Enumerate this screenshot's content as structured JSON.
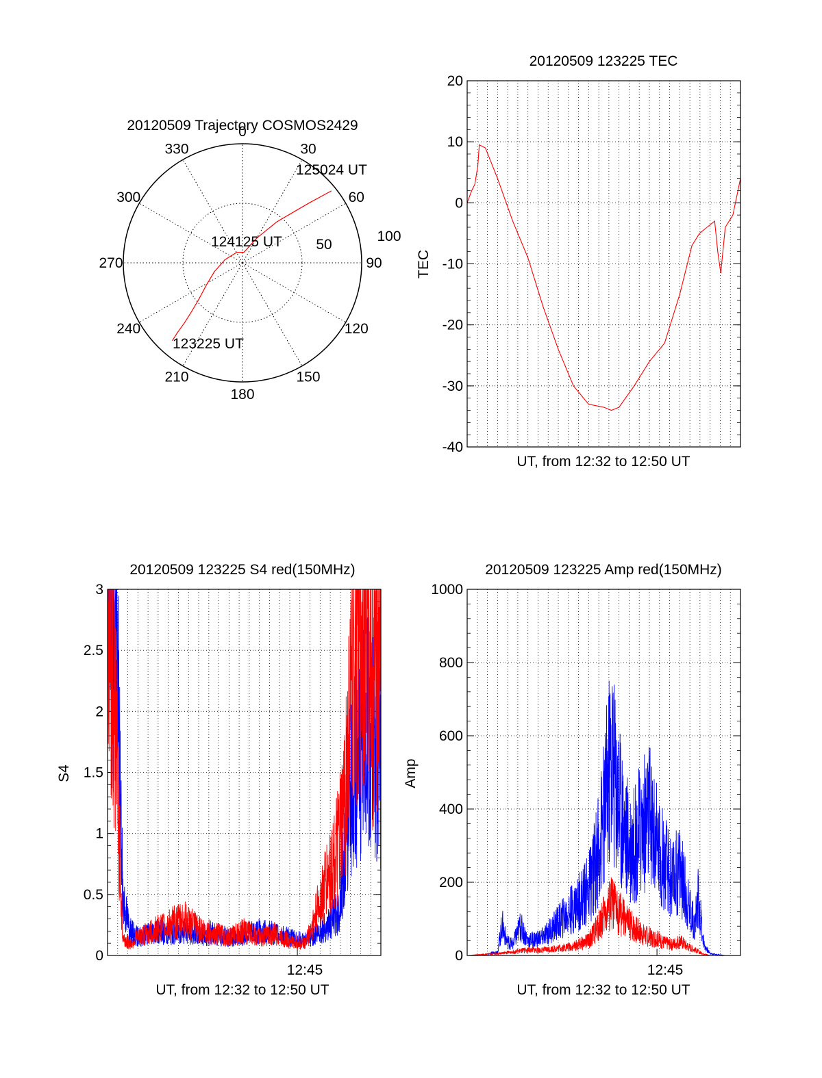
{
  "colors": {
    "red": "#ff0000",
    "blue": "#0000ff",
    "axis": "#000000",
    "grid": "#000000"
  },
  "chart_data": [
    {
      "id": "polar",
      "type": "polar",
      "title": "20120509 Trajectory COSMOS2429",
      "azimuth_labels": [
        "0",
        "30",
        "60",
        "90",
        "120",
        "150",
        "180",
        "210",
        "240",
        "270",
        "300",
        "330"
      ],
      "ring_labels": [
        "50",
        "100"
      ],
      "start_label": "123225 UT",
      "mid_label": "124125 UT",
      "end_label": "125024 UT",
      "trajectory": {
        "start": {
          "az": 222,
          "r": 88
        },
        "end": {
          "az": 51,
          "r": 96
        },
        "points": [
          [
            222,
            88
          ],
          [
            223,
            80
          ],
          [
            224,
            70
          ],
          [
            226,
            60
          ],
          [
            230,
            48
          ],
          [
            238,
            36
          ],
          [
            252,
            25
          ],
          [
            280,
            15
          ],
          [
            330,
            10
          ],
          [
            8,
            9
          ],
          [
            30,
            24
          ],
          [
            40,
            45
          ],
          [
            45,
            60
          ],
          [
            48,
            75
          ],
          [
            51,
            96
          ]
        ]
      },
      "grid": true
    },
    {
      "id": "tec",
      "type": "line",
      "title": "20120509 123225 TEC",
      "xlabel": "UT, from 12:32 to 12:50 UT",
      "ylabel": "TEC",
      "xlim": [
        0,
        18
      ],
      "ylim": [
        -40,
        20
      ],
      "yticks": [
        "20",
        "10",
        "0",
        "-10",
        "-20",
        "-30",
        "-40"
      ],
      "grid": true,
      "series": [
        {
          "color": "#ff0000",
          "x": [
            0,
            0.3,
            0.5,
            0.7,
            0.8,
            1.2,
            2.0,
            3.0,
            4.0,
            5.0,
            6.0,
            7.0,
            8.0,
            9.0,
            9.5,
            10.0,
            11.0,
            12.0,
            13.0,
            14.0,
            14.8,
            15.3,
            15.8,
            16.3,
            16.5,
            16.7,
            17.0,
            17.5,
            18.0
          ],
          "y": [
            0,
            2,
            3,
            6,
            9.5,
            9,
            4,
            -3,
            -9,
            -17,
            -24,
            -30,
            -33,
            -33.5,
            -34,
            -33.5,
            -30,
            -26,
            -23,
            -15,
            -7,
            -5,
            -4,
            -3,
            -8,
            -11.5,
            -4,
            -2,
            4
          ]
        }
      ]
    },
    {
      "id": "s4",
      "type": "line",
      "title": "20120509 123225 S4 red(150MHz)",
      "xlabel": "UT, from 12:32 to 12:50 UT",
      "ylabel": "S4",
      "xlim": [
        0,
        18
      ],
      "ylim": [
        0,
        3
      ],
      "yticks": [
        "3",
        "2.5",
        "2",
        "1.5",
        "1",
        "0.5",
        "0"
      ],
      "xtick_label": "12:45",
      "xtick_value": 12.5,
      "grid": true,
      "series": [
        {
          "color": "#0000ff",
          "x": [
            0,
            0.3,
            0.6,
            0.8,
            1.0,
            1.2,
            1.5,
            2,
            3,
            4,
            5,
            6,
            7,
            8,
            9,
            10,
            11,
            12,
            13,
            14,
            14.5,
            15.2,
            15.6,
            16,
            16.5,
            17,
            17.5,
            18
          ],
          "y": [
            3,
            3,
            2.5,
            1.5,
            0.5,
            0.35,
            0.2,
            0.15,
            0.2,
            0.18,
            0.2,
            0.16,
            0.18,
            0.15,
            0.17,
            0.2,
            0.18,
            0.15,
            0.12,
            0.2,
            0.25,
            0.35,
            0.8,
            1.4,
            1.6,
            1.9,
            1.7,
            1.5
          ]
        },
        {
          "color": "#ff0000",
          "x": [
            0,
            0.3,
            0.6,
            0.8,
            1.0,
            1.2,
            1.5,
            2,
            3,
            4,
            5,
            6,
            7,
            8,
            9,
            10,
            11,
            12,
            13,
            13.5,
            14,
            14.5,
            15,
            15.5,
            16,
            16.5,
            17,
            17.5,
            18
          ],
          "y": [
            3,
            2.5,
            1.8,
            0.8,
            0.15,
            0.12,
            0.1,
            0.15,
            0.2,
            0.25,
            0.3,
            0.22,
            0.18,
            0.15,
            0.2,
            0.15,
            0.18,
            0.12,
            0.1,
            0.25,
            0.45,
            0.65,
            0.8,
            1.1,
            2.0,
            2.6,
            3,
            2.2,
            2.8
          ]
        }
      ]
    },
    {
      "id": "amp",
      "type": "line",
      "title": "20120509 123225 Amp red(150MHz)",
      "xlabel": "UT, from 12:32 to 12:50 UT",
      "ylabel": "Amp",
      "xlim": [
        0,
        18
      ],
      "ylim": [
        0,
        1000
      ],
      "yticks": [
        "1000",
        "800",
        "600",
        "400",
        "200",
        "0"
      ],
      "xtick_label": "12:45",
      "xtick_value": 12.5,
      "grid": true,
      "series": [
        {
          "color": "#0000ff",
          "x": [
            0,
            1,
            2,
            2.3,
            2.6,
            3,
            3.5,
            4,
            5,
            6,
            7,
            8,
            8.5,
            9,
            9.5,
            10,
            10.5,
            11,
            11.5,
            12,
            12.5,
            13,
            13.5,
            14,
            14.5,
            15,
            15.2,
            15.6,
            16,
            17,
            18
          ],
          "y": [
            0,
            0,
            10,
            85,
            40,
            30,
            80,
            40,
            50,
            90,
            130,
            180,
            260,
            380,
            550,
            420,
            320,
            300,
            350,
            380,
            300,
            250,
            200,
            240,
            150,
            80,
            160,
            30,
            5,
            0,
            0
          ]
        },
        {
          "color": "#ff0000",
          "x": [
            0,
            2,
            3,
            4,
            5,
            6,
            7,
            8,
            8.5,
            9,
            9.5,
            10,
            10.5,
            11,
            11.5,
            12,
            12.5,
            13,
            13.5,
            14,
            14.5,
            15,
            15.5,
            16,
            18
          ],
          "y": [
            0,
            5,
            10,
            15,
            15,
            20,
            25,
            40,
            70,
            110,
            140,
            120,
            90,
            75,
            60,
            50,
            45,
            35,
            30,
            40,
            25,
            15,
            5,
            0,
            0
          ]
        }
      ]
    }
  ]
}
